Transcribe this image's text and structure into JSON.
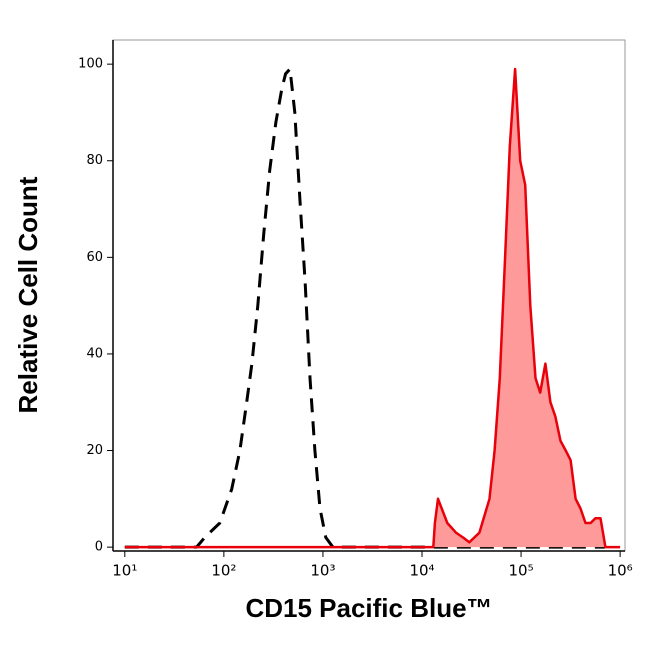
{
  "chart_data": {
    "type": "histogram-line",
    "xlabel": "CD15 Pacific Blue™",
    "ylabel": "Relative Cell Count",
    "xscale": "log",
    "xlim": [
      7.6,
      1120000
    ],
    "ylim": [
      -0.8,
      105
    ],
    "xticks": [
      {
        "value": 10,
        "label": "10¹"
      },
      {
        "value": 100,
        "label": "10²"
      },
      {
        "value": 1000,
        "label": "10³"
      },
      {
        "value": 10000,
        "label": "10⁴"
      },
      {
        "value": 100000,
        "label": "10⁵"
      },
      {
        "value": 1000000,
        "label": "10⁶"
      }
    ],
    "yticks": [
      0,
      20,
      40,
      60,
      80,
      100
    ],
    "series": [
      {
        "color": "#000000",
        "dashed": true,
        "filled": false,
        "x": [
          10,
          50,
          53,
          64,
          91,
          120,
          145,
          170,
          192,
          220,
          253,
          290,
          335,
          385,
          420,
          465,
          520,
          585,
          660,
          740,
          830,
          935,
          1070,
          1260,
          10000,
          100000,
          700000
        ],
        "values": [
          0,
          0,
          0,
          2,
          5,
          12,
          20,
          30,
          38,
          50,
          65,
          78,
          88,
          95,
          98,
          99,
          90,
          72,
          55,
          35,
          20,
          8,
          2,
          0,
          0,
          0,
          0
        ]
      },
      {
        "color": "#e8000b",
        "fill": "#ff9a9a",
        "dashed": false,
        "filled": true,
        "x": [
          10,
          13000,
          13500,
          14500,
          18000,
          22000,
          26000,
          30000,
          38000,
          48000,
          54000,
          61000,
          69000,
          77000,
          87000,
          98000,
          110000,
          124000,
          140000,
          156000,
          176000,
          198000,
          222000,
          250000,
          282000,
          316000,
          355000,
          398000,
          447000,
          503000,
          564000,
          633000,
          710000,
          1000000
        ],
        "values": [
          0,
          0,
          5,
          10,
          5,
          3,
          2,
          1,
          3,
          10,
          20,
          35,
          60,
          83,
          99,
          80,
          75,
          50,
          35,
          32,
          38,
          30,
          27,
          22,
          20,
          18,
          10,
          8,
          5,
          5,
          6,
          6,
          0,
          0
        ]
      }
    ]
  }
}
